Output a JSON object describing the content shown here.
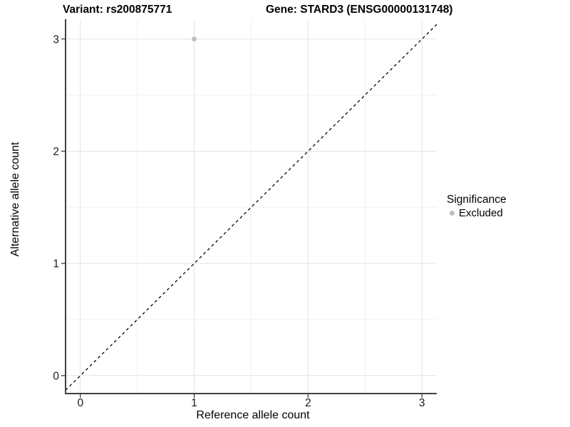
{
  "chart_data": {
    "type": "scatter",
    "title_left": "Variant: rs200875771",
    "title_right": "Gene: STARD3 (ENSG00000131748)",
    "xlabel": "Reference allele count",
    "ylabel": "Alternative allele count",
    "xlim": [
      -0.13,
      3.13
    ],
    "ylim": [
      -0.16,
      3.17
    ],
    "x_ticks": [
      0,
      1,
      2,
      3
    ],
    "y_ticks": [
      0,
      1,
      2,
      3
    ],
    "x_minor_ticks": [
      0.5,
      1.5,
      2.5
    ],
    "y_minor_ticks": [
      0.5,
      1.5,
      2.5
    ],
    "grid": "major+minor",
    "identity_line": {
      "slope": 1,
      "intercept": 0,
      "style": "dashed",
      "color": "#000000"
    },
    "series": [
      {
        "name": "Excluded",
        "color": "#bfbfbf",
        "points": [
          {
            "x": 1,
            "y": 3
          }
        ]
      }
    ],
    "legend": {
      "position": "right",
      "title": "Significance",
      "items": [
        {
          "label": "Excluded",
          "color": "#bfbfbf",
          "marker": "circle"
        }
      ]
    },
    "colors": {
      "grid_major": "#e3e3e3",
      "grid_minor": "#f0f0f0",
      "axis_line": "#404040",
      "tick_label": "#1a1a1a",
      "background": "#ffffff"
    }
  }
}
